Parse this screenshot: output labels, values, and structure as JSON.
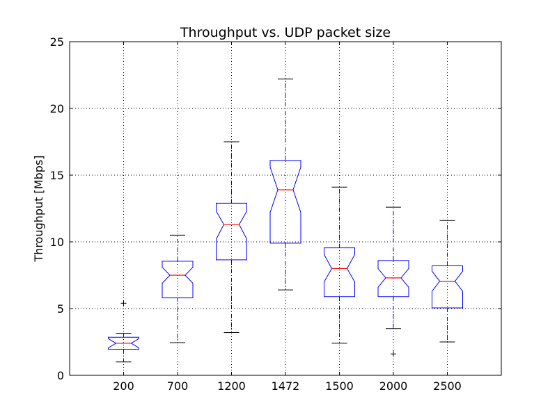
{
  "chart_data": {
    "type": "boxplot",
    "title": "Throughput vs. UDP packet size",
    "xlabel": "",
    "ylabel": "Throughput [Mbps]",
    "categories": [
      "200",
      "700",
      "1200",
      "1472",
      "1500",
      "2000",
      "2500"
    ],
    "ylim": [
      0,
      25
    ],
    "yticks": [
      0,
      5,
      10,
      15,
      20,
      25
    ],
    "grid": true,
    "notched": true,
    "colors": {
      "box": "#0000ff",
      "median": "#ff0000",
      "whisker": "#0000ff",
      "cap": "#000000",
      "flier": "#000000"
    },
    "boxes": [
      {
        "category": "200",
        "whisker_low": 1.0,
        "q1": 1.95,
        "median": 2.4,
        "q3": 2.85,
        "whisker_high": 3.15,
        "notch_low": 2.05,
        "notch_high": 2.75,
        "fliers": [
          5.4
        ]
      },
      {
        "category": "700",
        "whisker_low": 2.45,
        "q1": 5.8,
        "median": 7.5,
        "q3": 8.55,
        "whisker_high": 10.5,
        "notch_low": 6.9,
        "notch_high": 8.1,
        "fliers": []
      },
      {
        "category": "1200",
        "whisker_low": 3.2,
        "q1": 8.65,
        "median": 11.3,
        "q3": 12.9,
        "whisker_high": 17.5,
        "notch_low": 10.2,
        "notch_high": 12.3,
        "fliers": []
      },
      {
        "category": "1472",
        "whisker_low": 6.4,
        "q1": 9.9,
        "median": 13.9,
        "q3": 16.1,
        "whisker_high": 22.2,
        "notch_low": 12.2,
        "notch_high": 15.6,
        "fliers": []
      },
      {
        "category": "1500",
        "whisker_low": 2.4,
        "q1": 5.9,
        "median": 8.0,
        "q3": 9.55,
        "whisker_high": 14.1,
        "notch_low": 7.0,
        "notch_high": 9.05,
        "fliers": []
      },
      {
        "category": "2000",
        "whisker_low": 3.5,
        "q1": 5.9,
        "median": 7.3,
        "q3": 8.6,
        "whisker_high": 12.6,
        "notch_low": 6.6,
        "notch_high": 8.0,
        "fliers": [
          1.6
        ]
      },
      {
        "category": "2500",
        "whisker_low": 2.5,
        "q1": 5.05,
        "median": 7.05,
        "q3": 8.2,
        "whisker_high": 11.6,
        "notch_low": 6.3,
        "notch_high": 7.8,
        "fliers": []
      }
    ]
  }
}
